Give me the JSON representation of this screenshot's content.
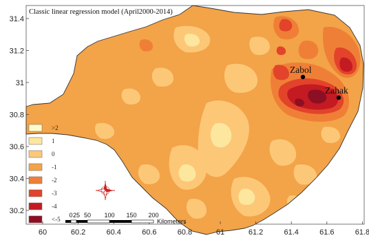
{
  "title": "Classic linear regression model (April2000-2014)",
  "axes": {
    "x_ticks": [
      "60",
      "60.2",
      "60.4",
      "60.6",
      "60.8",
      "61",
      "61.2",
      "61.4",
      "61.6",
      "61.8"
    ],
    "y_ticks": [
      "31.4",
      "31.2",
      "31",
      "30.8",
      "30.6",
      "30.4",
      "30.2"
    ]
  },
  "cities": [
    {
      "name": "Zabol",
      "lon": 61.49,
      "lat": 31.03
    },
    {
      "name": "Zahak",
      "lon": 61.69,
      "lat": 30.9
    }
  ],
  "legend": [
    {
      "label": ">2",
      "color": "#fffbc9"
    },
    {
      "label": "1",
      "color": "#fde79f"
    },
    {
      "label": "0",
      "color": "#fcc877"
    },
    {
      "label": "-1",
      "color": "#f3a348"
    },
    {
      "label": "-2",
      "color": "#ef7f36"
    },
    {
      "label": "-3",
      "color": "#e2432a"
    },
    {
      "label": "-4",
      "color": "#c41a22"
    },
    {
      "label": "<-5",
      "color": "#8c0f23"
    }
  ],
  "scalebar": {
    "labels": [
      "0",
      "25",
      "50",
      "100",
      "150",
      "200"
    ],
    "unit": "Kilometers"
  },
  "north_arrow": "compass-rose-icon"
}
